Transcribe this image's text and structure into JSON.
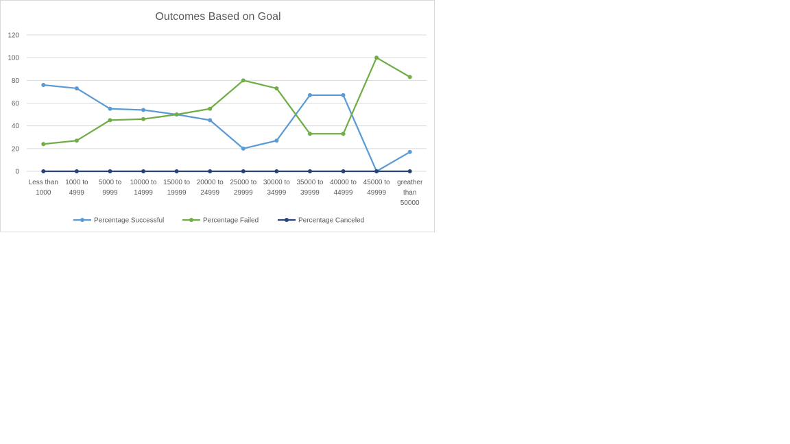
{
  "chart_data": {
    "type": "line",
    "title": "Outcomes Based on Goal",
    "xlabel": "",
    "ylabel": "",
    "ylim": [
      0,
      120
    ],
    "yticks": [
      0,
      20,
      40,
      60,
      80,
      100,
      120
    ],
    "grid": true,
    "legend_position": "bottom",
    "categories": [
      [
        "Less than",
        "1000"
      ],
      [
        "1000 to",
        "4999"
      ],
      [
        "5000 to",
        "9999"
      ],
      [
        "10000 to",
        "14999"
      ],
      [
        "15000 to",
        "19999"
      ],
      [
        "20000 to",
        "24999"
      ],
      [
        "25000 to",
        "29999"
      ],
      [
        "30000 to",
        "34999"
      ],
      [
        "35000 to",
        "39999"
      ],
      [
        "40000 to",
        "44999"
      ],
      [
        "45000 to",
        "49999"
      ],
      [
        "greather",
        "than",
        "50000"
      ]
    ],
    "series": [
      {
        "name": "Percentage Successful",
        "color": "#5b9bd5",
        "values": [
          76,
          73,
          55,
          54,
          50,
          45,
          20,
          27,
          67,
          67,
          0,
          17
        ]
      },
      {
        "name": "Percentage Failed",
        "color": "#70ad47",
        "values": [
          24,
          27,
          45,
          46,
          50,
          55,
          80,
          73,
          33,
          33,
          100,
          83
        ]
      },
      {
        "name": "Percentage Canceled",
        "color": "#264478",
        "values": [
          0,
          0,
          0,
          0,
          0,
          0,
          0,
          0,
          0,
          0,
          0,
          0
        ]
      }
    ]
  }
}
